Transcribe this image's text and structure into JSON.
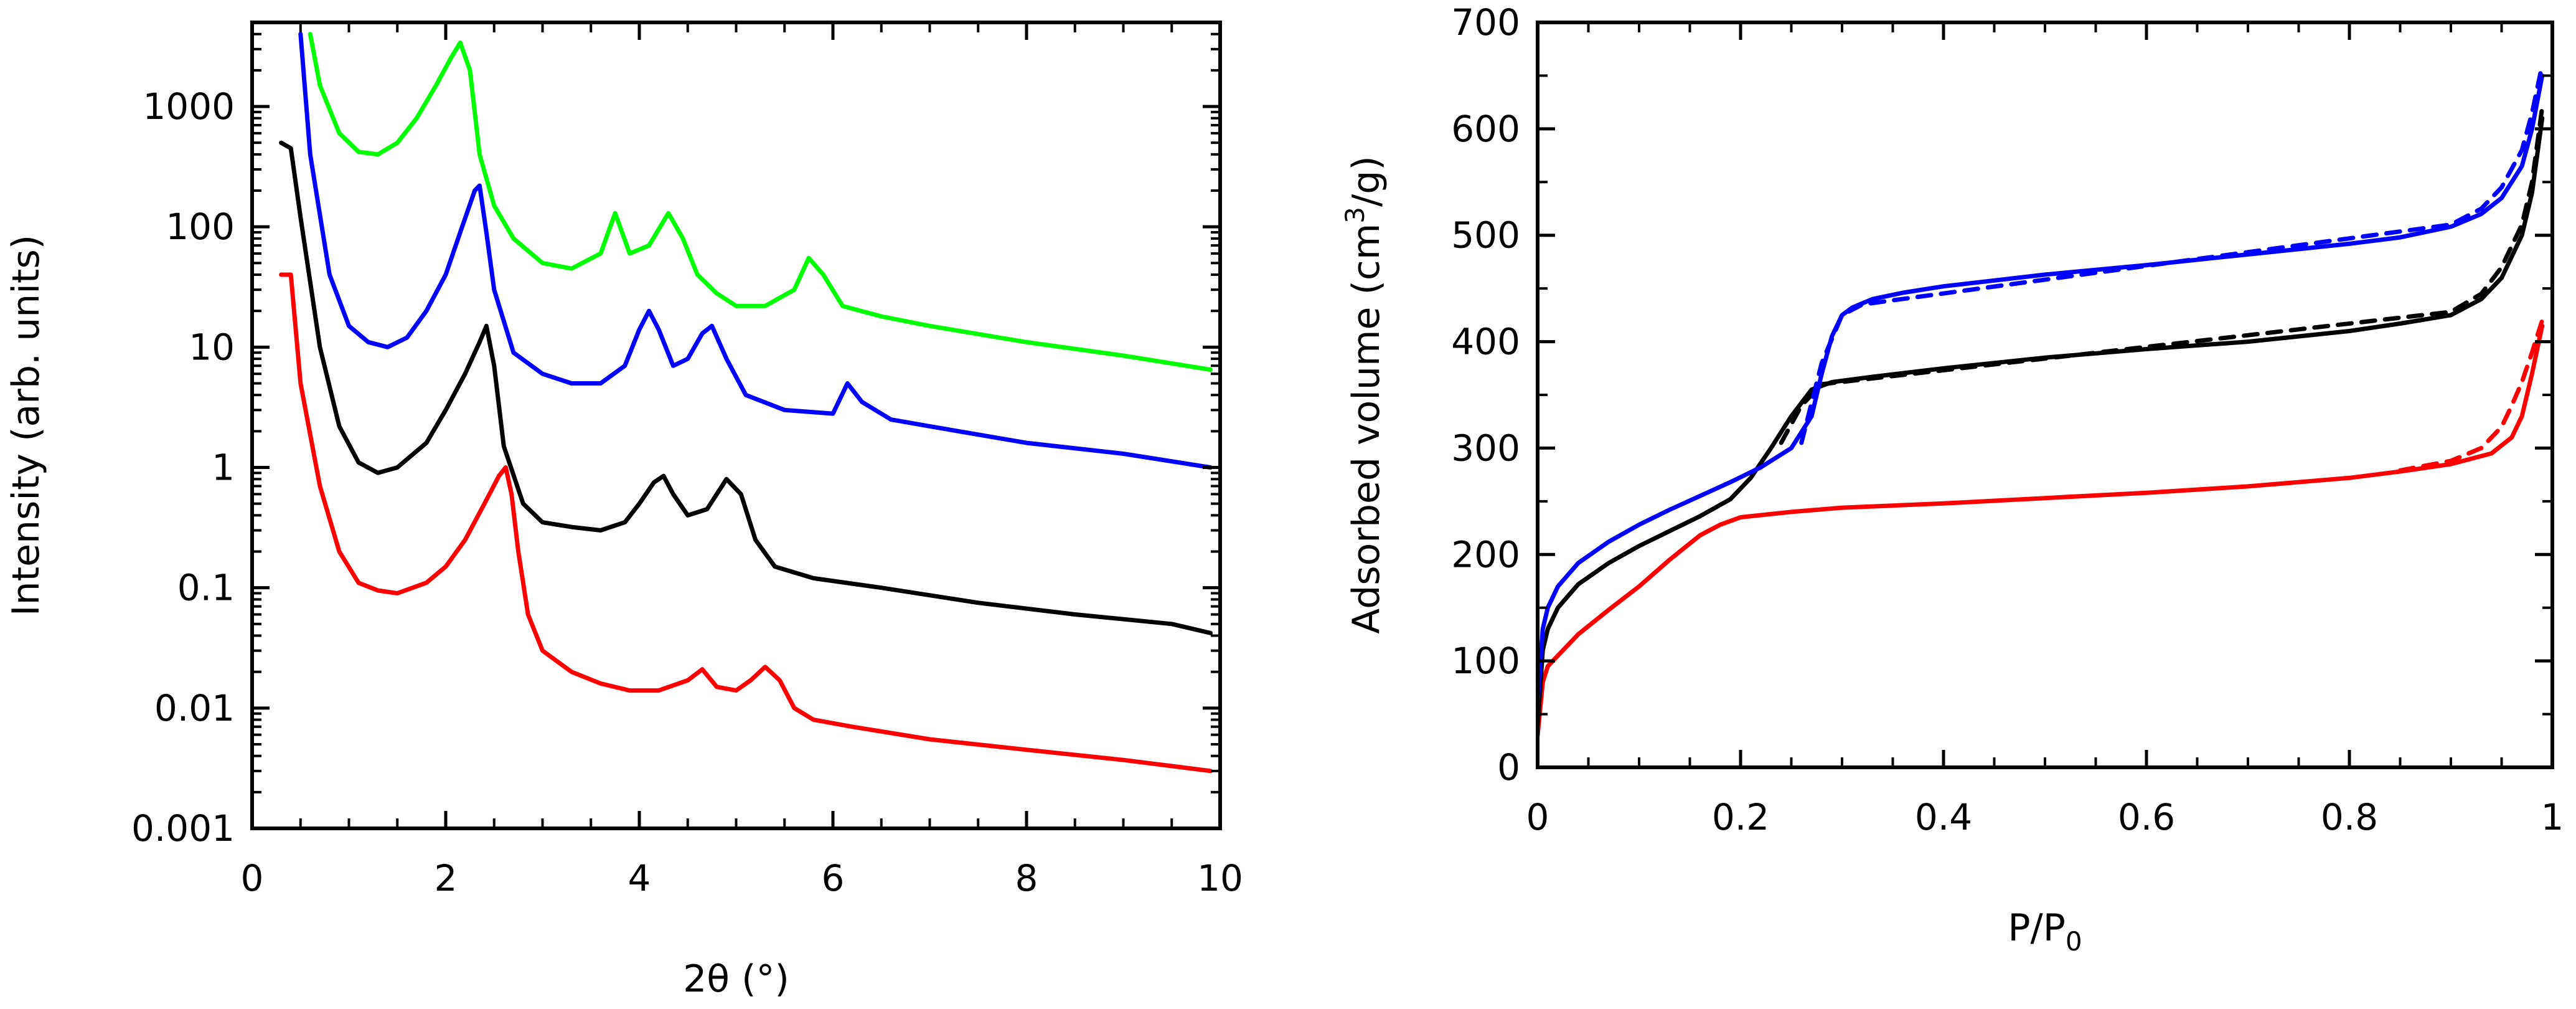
{
  "chart_data": [
    {
      "type": "line",
      "xlabel": "2θ (°)",
      "ylabel": "Intensity (arb. units)",
      "xlim": [
        0,
        10
      ],
      "ylim": [
        0.001,
        5000
      ],
      "yscale": "log",
      "x_ticks": [
        0,
        2,
        4,
        6,
        8,
        10
      ],
      "x_tick_labels": [
        "0",
        "2",
        "4",
        "6",
        "8",
        "10"
      ],
      "y_ticks": [
        0.001,
        0.01,
        0.1,
        1,
        10,
        100,
        1000
      ],
      "y_tick_labels": [
        "0.001",
        "0.01",
        "0.1",
        "1",
        "10",
        "100",
        "1000"
      ],
      "grid": false,
      "series": [
        {
          "name": "red",
          "color": "#ff0000",
          "x": [
            0.3,
            0.4,
            0.5,
            0.7,
            0.9,
            1.1,
            1.3,
            1.5,
            1.8,
            2.0,
            2.2,
            2.4,
            2.55,
            2.62,
            2.68,
            2.75,
            2.85,
            3.0,
            3.3,
            3.6,
            3.9,
            4.2,
            4.5,
            4.65,
            4.8,
            5.0,
            5.15,
            5.3,
            5.45,
            5.6,
            5.8,
            6.2,
            7.0,
            8.0,
            9.0,
            9.9
          ],
          "y": [
            40,
            40,
            5,
            0.7,
            0.2,
            0.11,
            0.095,
            0.09,
            0.11,
            0.15,
            0.25,
            0.5,
            0.85,
            1.0,
            0.6,
            0.2,
            0.06,
            0.03,
            0.02,
            0.016,
            0.014,
            0.014,
            0.017,
            0.021,
            0.015,
            0.014,
            0.017,
            0.022,
            0.017,
            0.01,
            0.008,
            0.007,
            0.0055,
            0.0045,
            0.0037,
            0.003
          ]
        },
        {
          "name": "black",
          "color": "#000000",
          "x": [
            0.3,
            0.4,
            0.5,
            0.7,
            0.9,
            1.1,
            1.3,
            1.5,
            1.8,
            2.0,
            2.2,
            2.35,
            2.42,
            2.5,
            2.6,
            2.8,
            3.0,
            3.3,
            3.6,
            3.85,
            4.0,
            4.15,
            4.25,
            4.35,
            4.5,
            4.7,
            4.9,
            5.05,
            5.2,
            5.4,
            5.8,
            6.5,
            7.5,
            8.5,
            9.5,
            9.9
          ],
          "y": [
            500,
            450,
            120,
            10,
            2.2,
            1.1,
            0.9,
            1.0,
            1.6,
            3,
            6,
            11,
            15,
            7,
            1.5,
            0.5,
            0.35,
            0.32,
            0.3,
            0.35,
            0.5,
            0.75,
            0.85,
            0.6,
            0.4,
            0.45,
            0.8,
            0.6,
            0.25,
            0.15,
            0.12,
            0.1,
            0.075,
            0.06,
            0.05,
            0.042
          ]
        },
        {
          "name": "blue",
          "color": "#0000ff",
          "x": [
            0.5,
            0.6,
            0.8,
            1.0,
            1.2,
            1.4,
            1.6,
            1.8,
            2.0,
            2.15,
            2.3,
            2.35,
            2.42,
            2.5,
            2.7,
            3.0,
            3.3,
            3.6,
            3.85,
            4.0,
            4.1,
            4.2,
            4.35,
            4.5,
            4.65,
            4.75,
            4.9,
            5.1,
            5.5,
            6.0,
            6.15,
            6.3,
            6.6,
            7.0,
            8.0,
            9.0,
            9.9
          ],
          "y": [
            4000,
            400,
            40,
            15,
            11,
            10,
            12,
            20,
            40,
            90,
            200,
            220,
            90,
            30,
            9,
            6,
            5,
            5,
            7,
            14,
            20,
            14,
            7,
            8,
            13,
            15,
            8,
            4,
            3,
            2.8,
            5,
            3.5,
            2.5,
            2.2,
            1.6,
            1.3,
            1.0
          ]
        },
        {
          "name": "green",
          "color": "#00ff00",
          "x": [
            0.6,
            0.7,
            0.9,
            1.1,
            1.3,
            1.5,
            1.7,
            1.9,
            2.05,
            2.15,
            2.25,
            2.35,
            2.5,
            2.7,
            3.0,
            3.3,
            3.6,
            3.75,
            3.9,
            4.1,
            4.3,
            4.45,
            4.6,
            4.8,
            5.0,
            5.3,
            5.6,
            5.75,
            5.9,
            6.1,
            6.5,
            7.0,
            8.0,
            9.0,
            9.9
          ],
          "y": [
            4000,
            1500,
            600,
            420,
            400,
            500,
            800,
            1500,
            2500,
            3400,
            2000,
            400,
            150,
            80,
            50,
            45,
            60,
            130,
            60,
            70,
            130,
            80,
            40,
            28,
            22,
            22,
            30,
            55,
            40,
            22,
            18,
            15,
            11,
            8.5,
            6.5
          ]
        }
      ]
    },
    {
      "type": "line",
      "xlabel": "P/P",
      "xlabel_sub": "0",
      "ylabel": "Adsorbed volume (cm",
      "ylabel_sup": "3",
      "ylabel_end": "/g)",
      "xlim": [
        0,
        1
      ],
      "ylim": [
        0,
        700
      ],
      "x_ticks": [
        0,
        0.2,
        0.4,
        0.6,
        0.8,
        1
      ],
      "x_tick_labels": [
        "0",
        "0.2",
        "0.4",
        "0.6",
        "0.8",
        "1"
      ],
      "y_ticks": [
        0,
        100,
        200,
        300,
        400,
        500,
        600,
        700
      ],
      "y_tick_labels": [
        "0",
        "100",
        "200",
        "300",
        "400",
        "500",
        "600",
        "700"
      ],
      "grid": false,
      "series": [
        {
          "name": "red adsorption",
          "color": "#ff0000",
          "dashed": false,
          "x": [
            0,
            0.005,
            0.01,
            0.02,
            0.04,
            0.07,
            0.1,
            0.13,
            0.16,
            0.18,
            0.2,
            0.25,
            0.3,
            0.4,
            0.5,
            0.6,
            0.7,
            0.8,
            0.85,
            0.9,
            0.94,
            0.96,
            0.97,
            0.98,
            0.99
          ],
          "y": [
            30,
            80,
            95,
            105,
            125,
            148,
            170,
            195,
            218,
            228,
            235,
            240,
            244,
            248,
            253,
            258,
            264,
            272,
            278,
            285,
            295,
            310,
            330,
            370,
            415
          ]
        },
        {
          "name": "red desorption",
          "color": "#ff0000",
          "dashed": true,
          "x": [
            0.85,
            0.9,
            0.93,
            0.95,
            0.96,
            0.97,
            0.98,
            0.99
          ],
          "y": [
            279,
            288,
            300,
            320,
            340,
            362,
            390,
            420
          ]
        },
        {
          "name": "black adsorption",
          "color": "#000000",
          "dashed": false,
          "x": [
            0,
            0.005,
            0.01,
            0.02,
            0.04,
            0.07,
            0.1,
            0.13,
            0.16,
            0.19,
            0.21,
            0.23,
            0.25,
            0.27,
            0.29,
            0.33,
            0.4,
            0.5,
            0.6,
            0.7,
            0.8,
            0.85,
            0.9,
            0.93,
            0.95,
            0.97,
            0.98,
            0.99
          ],
          "y": [
            40,
            110,
            130,
            150,
            172,
            192,
            208,
            222,
            236,
            252,
            272,
            300,
            330,
            355,
            362,
            367,
            375,
            385,
            393,
            400,
            410,
            417,
            425,
            440,
            460,
            500,
            540,
            610
          ]
        },
        {
          "name": "black desorption",
          "color": "#000000",
          "dashed": true,
          "x": [
            0.24,
            0.26,
            0.28,
            0.9,
            0.93,
            0.95,
            0.97,
            0.98,
            0.99
          ],
          "y": [
            305,
            340,
            360,
            428,
            445,
            470,
            510,
            550,
            620
          ]
        },
        {
          "name": "blue adsorption",
          "color": "#0000ff",
          "dashed": false,
          "x": [
            0,
            0.005,
            0.01,
            0.02,
            0.04,
            0.07,
            0.1,
            0.13,
            0.16,
            0.19,
            0.22,
            0.25,
            0.27,
            0.28,
            0.29,
            0.3,
            0.31,
            0.33,
            0.36,
            0.4,
            0.5,
            0.6,
            0.7,
            0.8,
            0.85,
            0.9,
            0.93,
            0.95,
            0.97,
            0.98,
            0.99
          ],
          "y": [
            60,
            130,
            150,
            170,
            192,
            212,
            228,
            242,
            255,
            268,
            282,
            300,
            330,
            370,
            405,
            425,
            432,
            440,
            446,
            452,
            463,
            472,
            482,
            492,
            498,
            508,
            520,
            535,
            565,
            600,
            650
          ]
        },
        {
          "name": "blue desorption",
          "color": "#0000ff",
          "dashed": true,
          "x": [
            0.26,
            0.28,
            0.3,
            0.32,
            0.9,
            0.93,
            0.95,
            0.97,
            0.98,
            0.99
          ],
          "y": [
            305,
            380,
            425,
            435,
            510,
            525,
            545,
            580,
            615,
            660
          ]
        }
      ]
    }
  ]
}
